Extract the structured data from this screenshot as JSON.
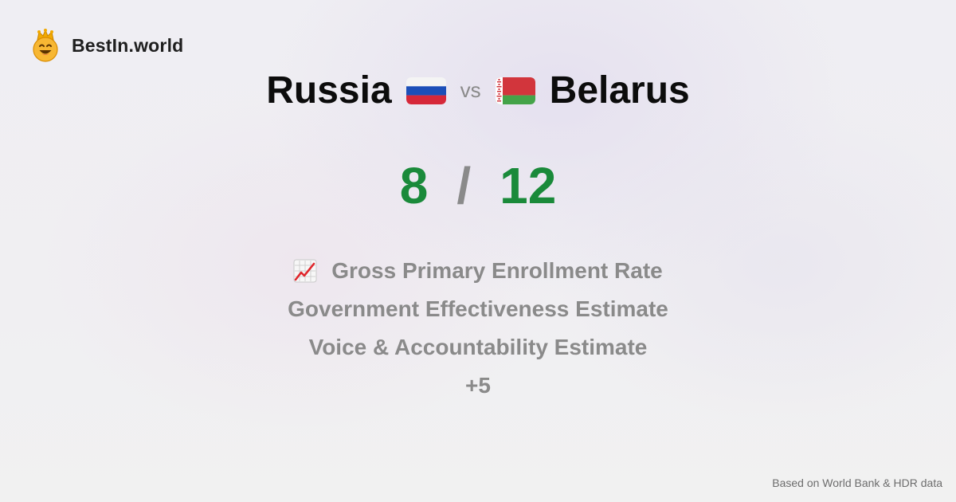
{
  "brand": {
    "name": "BestIn.world",
    "logo_icon": "crowned-smiley-icon"
  },
  "comparison": {
    "country_a": "Russia",
    "country_a_flag": "russia-flag-icon",
    "vs_label": "vs",
    "country_b": "Belarus",
    "country_b_flag": "belarus-flag-icon",
    "score_a": "8",
    "score_separator": "/",
    "score_b": "12"
  },
  "metrics": {
    "items": [
      "Gross Primary Enrollment Rate",
      "Government Effectiveness Estimate",
      "Voice & Accountability Estimate"
    ],
    "first_item_icon": "chart-increasing-icon",
    "more": "+5"
  },
  "footer": {
    "source": "Based on World Bank & HDR data"
  },
  "colors": {
    "score_green": "#1a8a3a",
    "muted_gray": "#8a8a8a",
    "heading_black": "#0c0c0c"
  }
}
